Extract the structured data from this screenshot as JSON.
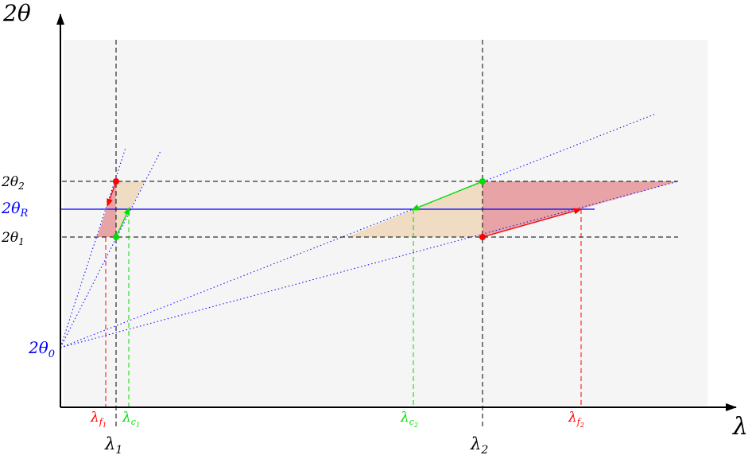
{
  "axes": {
    "y_label": "2θ",
    "x_label": "λ"
  },
  "horizontal_levels": {
    "two_theta_2": {
      "base": "2θ",
      "sub": "2"
    },
    "two_theta_R": {
      "base": "2θ",
      "sub": "R"
    },
    "two_theta_1": {
      "base": "2θ",
      "sub": "1"
    },
    "two_theta_0": {
      "base": "2θ",
      "sub": "0"
    }
  },
  "wavelength_marks": {
    "lambda_1": {
      "base": "λ",
      "sub": "1"
    },
    "lambda_2": {
      "base": "λ",
      "sub": "2"
    },
    "lambda_f1": {
      "base": "λ",
      "sub": "f",
      "subsub": "1"
    },
    "lambda_c1": {
      "base": "λ",
      "sub": "c",
      "subsub": "1"
    },
    "lambda_c2": {
      "base": "λ",
      "sub": "c",
      "subsub": "2"
    },
    "lambda_f2": {
      "base": "λ",
      "sub": "f",
      "subsub": "2"
    }
  },
  "colors": {
    "axis": "#000000",
    "guide": "#000000",
    "reference": "#0000ff",
    "red_marker": "#ff0000",
    "green_marker": "#00dd00",
    "red_fill": "#e8a3a6",
    "tan_fill": "#efdcc3",
    "background_panel": "#f5f5f5"
  }
}
